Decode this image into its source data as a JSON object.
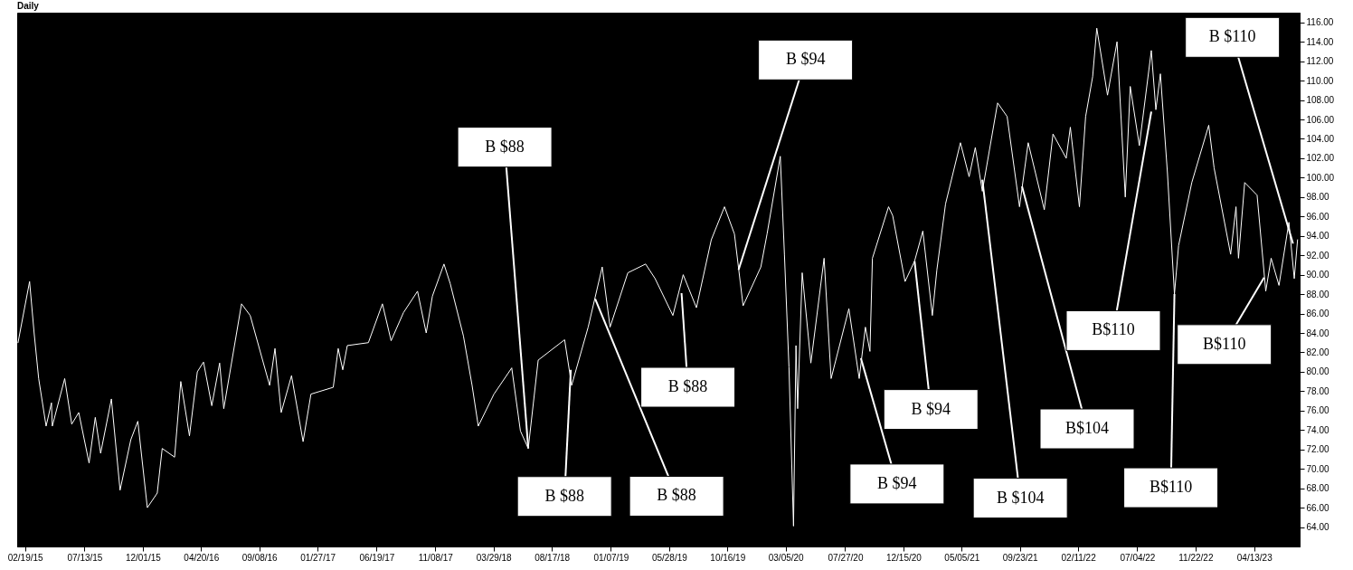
{
  "chart_data": {
    "type": "line",
    "title": "Daily",
    "color": "#ffffff",
    "x": [
      "2015-02-02",
      "2015-03-02",
      "2015-03-13",
      "2015-03-24",
      "2015-04-11",
      "2015-04-24",
      "2015-04-26",
      "2015-05-26",
      "2015-06-12",
      "2015-06-29",
      "2015-07-24",
      "2015-08-08",
      "2015-08-21",
      "2015-09-16",
      "2015-10-07",
      "2015-11-02",
      "2015-11-19",
      "2015-12-12",
      "2016-01-05",
      "2016-01-17",
      "2016-02-16",
      "2016-03-02",
      "2016-03-23",
      "2016-04-11",
      "2016-04-26",
      "2016-05-16",
      "2016-06-04",
      "2016-06-14",
      "2016-07-27",
      "2016-08-17",
      "2016-09-16",
      "2016-10-03",
      "2016-10-16",
      "2016-10-31",
      "2016-11-25",
      "2016-12-23",
      "2017-01-11",
      "2017-03-06",
      "2017-03-18",
      "2017-03-29",
      "2017-04-09",
      "2017-05-30",
      "2017-07-03",
      "2017-07-24",
      "2017-08-23",
      "2017-09-26",
      "2017-10-17",
      "2017-11-01",
      "2017-11-29",
      "2017-12-14",
      "2018-01-15",
      "2018-02-05",
      "2018-02-20",
      "2018-03-30",
      "2018-05-12",
      "2018-06-02",
      "2018-06-21",
      "2018-07-15",
      "2018-09-17",
      "2018-10-04",
      "2018-11-13",
      "2018-12-17",
      "2019-01-05",
      "2019-02-17",
      "2019-04-01",
      "2019-04-24",
      "2019-06-06",
      "2019-07-01",
      "2019-08-02",
      "2019-09-07",
      "2019-10-09",
      "2019-11-02",
      "2019-11-23",
      "2020-01-05",
      "2020-01-20",
      "2020-02-21",
      "2020-03-02",
      "2020-03-13",
      "2020-03-24",
      "2020-03-30",
      "2020-04-03",
      "2020-04-14",
      "2020-05-05",
      "2020-06-06",
      "2020-06-23",
      "2020-08-05",
      "2020-08-30",
      "2020-09-14",
      "2020-09-25",
      "2020-10-01",
      "2020-11-09",
      "2020-11-19",
      "2020-12-19",
      "2021-01-11",
      "2021-01-31",
      "2021-02-23",
      "2021-03-06",
      "2021-03-27",
      "2021-05-02",
      "2021-05-23",
      "2021-06-07",
      "2021-06-24",
      "2021-07-31",
      "2021-08-23",
      "2021-09-22",
      "2021-10-13",
      "2021-11-21",
      "2021-12-12",
      "2022-01-13",
      "2022-01-23",
      "2022-02-14",
      "2022-03-01",
      "2022-03-18",
      "2022-03-28",
      "2022-04-23",
      "2022-05-16",
      "2022-06-05",
      "2022-06-17",
      "2022-07-09",
      "2022-08-07",
      "2022-08-18",
      "2022-08-29",
      "2022-09-15",
      "2022-10-02",
      "2022-10-12",
      "2022-11-13",
      "2022-12-24",
      "2023-01-06",
      "2023-02-15",
      "2023-02-28",
      "2023-03-06",
      "2023-03-21",
      "2023-04-20",
      "2023-05-11",
      "2023-05-24",
      "2023-06-12",
      "2023-07-06",
      "2023-07-19",
      "2023-07-27"
    ],
    "values": [
      83.0,
      89.3,
      84.0,
      79.3,
      74.4,
      76.8,
      74.4,
      79.3,
      74.6,
      75.8,
      70.6,
      75.3,
      71.6,
      77.2,
      67.8,
      73.0,
      74.9,
      66.0,
      67.5,
      72.1,
      71.2,
      79.0,
      73.4,
      80.0,
      81.0,
      76.5,
      80.9,
      76.2,
      87.0,
      85.8,
      81.2,
      78.6,
      82.4,
      75.8,
      79.6,
      72.8,
      77.7,
      78.4,
      82.4,
      80.2,
      82.7,
      83.0,
      87.0,
      83.2,
      86.1,
      88.3,
      84.0,
      87.8,
      91.1,
      89.1,
      83.7,
      78.6,
      74.4,
      77.7,
      80.4,
      73.9,
      72.1,
      81.2,
      83.3,
      78.6,
      84.6,
      90.8,
      84.6,
      90.2,
      91.1,
      89.6,
      85.8,
      90.0,
      86.6,
      93.6,
      97.0,
      94.2,
      86.8,
      90.8,
      94.2,
      102.2,
      92.1,
      80.5,
      64.1,
      82.7,
      76.2,
      90.2,
      80.9,
      91.7,
      79.3,
      86.5,
      79.3,
      84.6,
      82.1,
      91.7,
      97.0,
      96.1,
      89.3,
      91.4,
      94.5,
      85.8,
      90.5,
      97.3,
      103.6,
      100.1,
      103.1,
      98.6,
      107.7,
      106.3,
      97.0,
      103.6,
      96.7,
      104.5,
      102.0,
      105.2,
      97.0,
      106.3,
      110.4,
      115.4,
      108.5,
      114.0,
      98.0,
      109.4,
      103.3,
      113.1,
      107.0,
      110.7,
      100.5,
      88.0,
      93.0,
      99.5,
      105.4,
      101.0,
      92.1,
      97.0,
      91.7,
      99.5,
      98.2,
      88.3,
      91.7,
      88.9,
      95.4,
      89.6,
      93.6
    ],
    "xlim": [
      "2015-01-31",
      "2023-08-01"
    ],
    "xticks": [
      {
        "value": "2015-02-19",
        "label": "02/19/15"
      },
      {
        "value": "2015-07-13",
        "label": "07/13/15"
      },
      {
        "value": "2015-12-01",
        "label": "12/01/15"
      },
      {
        "value": "2016-04-20",
        "label": "04/20/16"
      },
      {
        "value": "2016-09-08",
        "label": "09/08/16"
      },
      {
        "value": "2017-01-27",
        "label": "01/27/17"
      },
      {
        "value": "2017-06-19",
        "label": "06/19/17"
      },
      {
        "value": "2017-11-08",
        "label": "11/08/17"
      },
      {
        "value": "2018-03-29",
        "label": "03/29/18"
      },
      {
        "value": "2018-08-17",
        "label": "08/17/18"
      },
      {
        "value": "2019-01-07",
        "label": "01/07/19"
      },
      {
        "value": "2019-05-28",
        "label": "05/28/19"
      },
      {
        "value": "2019-10-16",
        "label": "10/16/19"
      },
      {
        "value": "2020-03-05",
        "label": "03/05/20"
      },
      {
        "value": "2020-07-27",
        "label": "07/27/20"
      },
      {
        "value": "2020-12-15",
        "label": "12/15/20"
      },
      {
        "value": "2021-05-05",
        "label": "05/05/21"
      },
      {
        "value": "2021-09-23",
        "label": "09/23/21"
      },
      {
        "value": "2022-02-11",
        "label": "02/11/22"
      },
      {
        "value": "2022-07-04",
        "label": "07/04/22"
      },
      {
        "value": "2022-11-22",
        "label": "11/22/22"
      },
      {
        "value": "2023-04-13",
        "label": "04/13/23"
      }
    ],
    "ylim": [
      62,
      117
    ],
    "yticks": [
      {
        "value": 64,
        "label": "64.00"
      },
      {
        "value": 66,
        "label": "66.00"
      },
      {
        "value": 68,
        "label": "68.00"
      },
      {
        "value": 70,
        "label": "70.00"
      },
      {
        "value": 72,
        "label": "72.00"
      },
      {
        "value": 74,
        "label": "74.00"
      },
      {
        "value": 76,
        "label": "76.00"
      },
      {
        "value": 78,
        "label": "78.00"
      },
      {
        "value": 80,
        "label": "80.00"
      },
      {
        "value": 82,
        "label": "82.00"
      },
      {
        "value": 84,
        "label": "84.00"
      },
      {
        "value": 86,
        "label": "86.00"
      },
      {
        "value": 88,
        "label": "88.00"
      },
      {
        "value": 90,
        "label": "90.00"
      },
      {
        "value": 92,
        "label": "92.00"
      },
      {
        "value": 94,
        "label": "94.00"
      },
      {
        "value": 96,
        "label": "96.00"
      },
      {
        "value": 98,
        "label": "98.00"
      },
      {
        "value": 100,
        "label": "100.00"
      },
      {
        "value": 102,
        "label": "102.00"
      },
      {
        "value": 104,
        "label": "104.00"
      },
      {
        "value": 106,
        "label": "106.00"
      },
      {
        "value": 108,
        "label": "108.00"
      },
      {
        "value": 110,
        "label": "110.00"
      },
      {
        "value": 112,
        "label": "112.00"
      },
      {
        "value": 114,
        "label": "114.00"
      },
      {
        "value": 116,
        "label": "116.00"
      }
    ],
    "annotations": [
      {
        "text": "B $88",
        "x": "2018-06-21",
        "y": 72.1
      },
      {
        "text": "B $88",
        "x": "2018-10-02",
        "y": 80.2
      },
      {
        "text": "B $88",
        "x": "2018-11-30",
        "y": 87.5
      },
      {
        "text": "B $88",
        "x": "2019-06-27",
        "y": 88.1
      },
      {
        "text": "B $94",
        "x": "2019-11-12",
        "y": 90.5
      },
      {
        "text": "B $94",
        "x": "2020-09-03",
        "y": 81.4
      },
      {
        "text": "B $94",
        "x": "2021-01-11",
        "y": 91.4
      },
      {
        "text": "B $104",
        "x": "2021-06-24",
        "y": 99.8
      },
      {
        "text": "B$104",
        "x": "2021-09-28",
        "y": 99.1
      },
      {
        "text": "B$110",
        "x": "2022-08-07",
        "y": 106.8
      },
      {
        "text": "B$110",
        "x": "2022-10-02",
        "y": 88.0
      },
      {
        "text": "B$110",
        "x": "2023-05-07",
        "y": 89.7
      },
      {
        "text": "B $110",
        "x": "2023-07-16",
        "y": 93.2
      }
    ]
  }
}
